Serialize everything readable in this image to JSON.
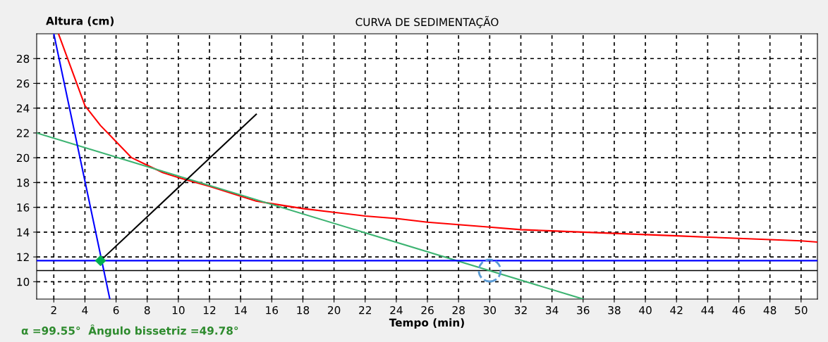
{
  "chart_data": {
    "type": "line",
    "title": "CURVA DE SEDIMENTAÇÃO",
    "xlabel": "Tempo (min)",
    "ylabel": "Altura (cm)",
    "xlim": [
      0.9,
      51.05
    ],
    "ylim": [
      8.6,
      30
    ],
    "xticks": [
      2,
      4,
      6,
      8,
      10,
      12,
      14,
      16,
      18,
      20,
      22,
      24,
      26,
      28,
      30,
      32,
      34,
      36,
      38,
      40,
      42,
      44,
      46,
      48,
      50
    ],
    "yticks": [
      10,
      12,
      14,
      16,
      18,
      20,
      22,
      24,
      26,
      28
    ],
    "grid": true,
    "series": [
      {
        "color": "#ff0000",
        "x": [
          2.3,
          4,
          5,
          6,
          7,
          8,
          9,
          10,
          12,
          14,
          15,
          16,
          18,
          20,
          22,
          24,
          26,
          28,
          30,
          32,
          34,
          36,
          38,
          40,
          42,
          44,
          46,
          48,
          50,
          51.05
        ],
        "values": [
          30,
          24.2,
          22.6,
          21.3,
          20,
          19.4,
          18.8,
          18.4,
          17.7,
          16.9,
          16.5,
          16.3,
          15.9,
          15.6,
          15.3,
          15.1,
          14.8,
          14.6,
          14.4,
          14.2,
          14.1,
          14.0,
          13.9,
          13.8,
          13.7,
          13.6,
          13.5,
          13.4,
          13.3,
          13.2
        ]
      },
      {
        "color": "#3cb371",
        "x": [
          0.9,
          36
        ],
        "values": [
          22,
          8.6
        ]
      },
      {
        "color": "#0000ff",
        "x": [
          2,
          5.6
        ],
        "values": [
          30,
          8.6
        ]
      },
      {
        "color": "#0000ff",
        "x": [
          0.9,
          51.05
        ],
        "values": [
          11.7,
          11.7
        ]
      },
      {
        "color": "#000000",
        "x": [
          5,
          15
        ],
        "values": [
          11.7,
          23.5
        ]
      },
      {
        "type": "scatter",
        "color": "#00b050",
        "marker": "diamond",
        "x": [
          5
        ],
        "values": [
          11.7
        ]
      },
      {
        "type": "scatter",
        "color": "#5b9bd5",
        "marker": "circle",
        "line_style": "dashed",
        "x": [
          30
        ],
        "values": [
          10.9
        ]
      }
    ],
    "ref_lines": [
      {
        "axis": "y",
        "value": 10.9,
        "color": "#000000"
      }
    ],
    "annotations": [
      "α =99.55°  Ângulo bissetriz =49.78°"
    ]
  }
}
